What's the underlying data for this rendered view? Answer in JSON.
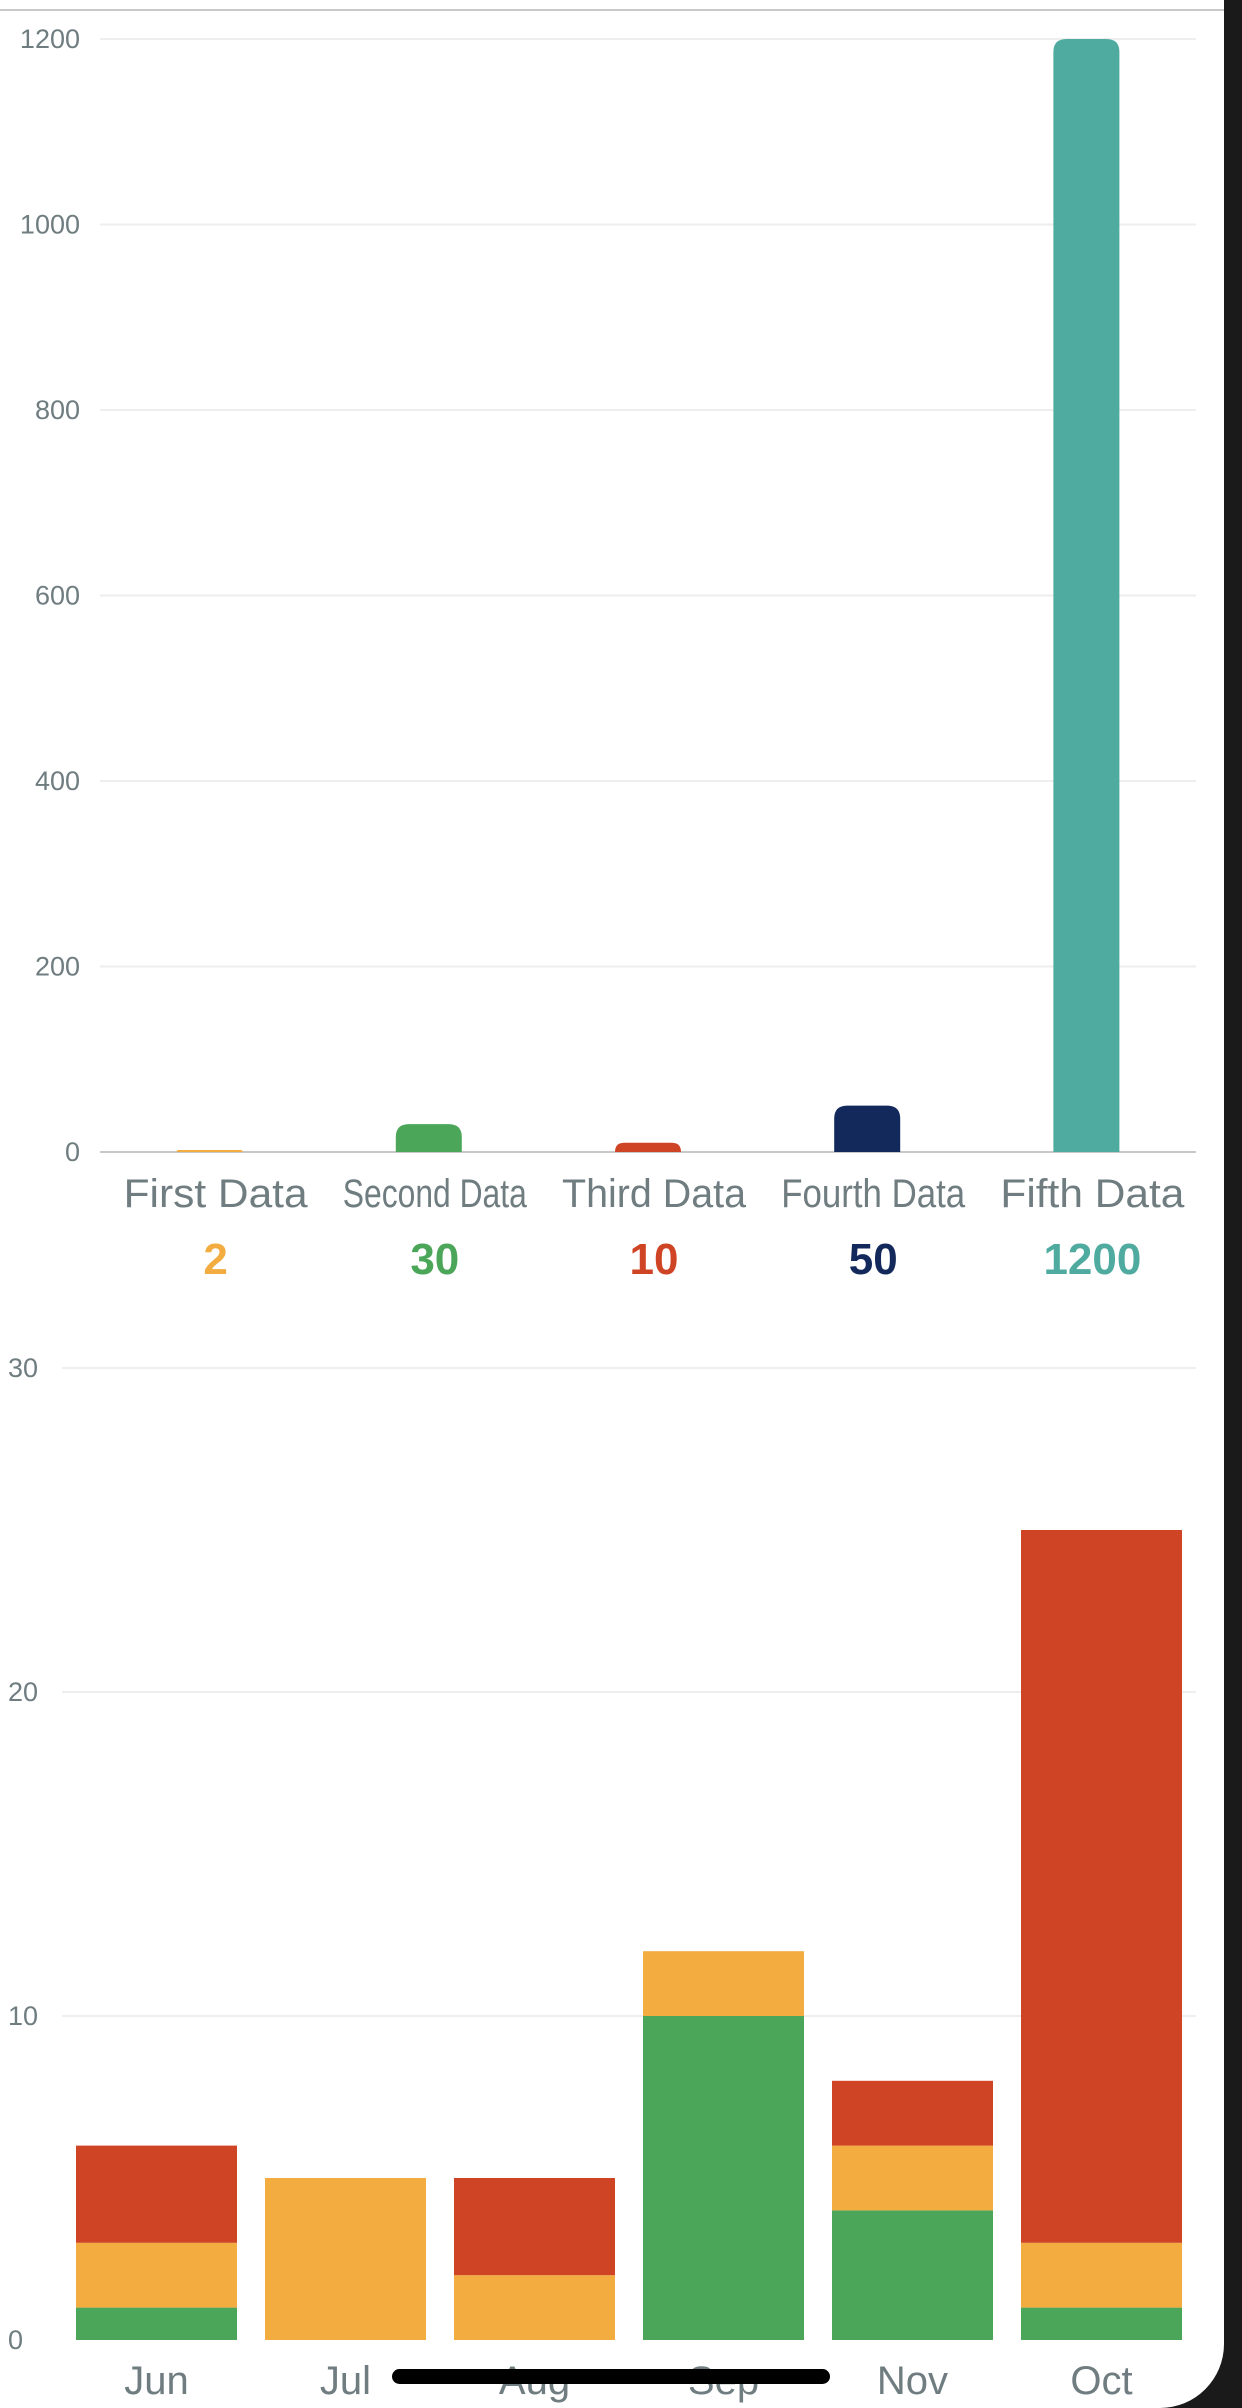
{
  "chart_data": [
    {
      "type": "bar",
      "categories": [
        "First Data",
        "Second Data",
        "Third Data",
        "Fourth Data",
        "Fifth Data"
      ],
      "values": [
        2,
        30,
        10,
        50,
        1200
      ],
      "value_labels": [
        "2",
        "30",
        "10",
        "50",
        "1200"
      ],
      "colors": [
        "#f2ac40",
        "#4ba65a",
        "#cf4424",
        "#13295b",
        "#4fab9f"
      ],
      "ylim": [
        0,
        1200
      ],
      "yticks": [
        0,
        200,
        400,
        600,
        800,
        1000,
        1200
      ],
      "ytick_labels": [
        "0",
        "200",
        "400",
        "600",
        "800",
        "1000",
        "1200"
      ],
      "grid": true,
      "title": "",
      "xlabel": "",
      "ylabel": ""
    },
    {
      "type": "bar",
      "stacked": true,
      "categories": [
        "Jun",
        "Jul",
        "Aug",
        "Sep",
        "Nov",
        "Oct"
      ],
      "series": [
        {
          "color": "#4ba65a",
          "values": [
            1,
            0,
            0,
            10,
            4,
            1
          ]
        },
        {
          "color": "#f2ac40",
          "values": [
            2,
            5,
            2,
            2,
            2,
            2
          ]
        },
        {
          "color": "#cf4424",
          "values": [
            3,
            0,
            3,
            0,
            2,
            22
          ]
        }
      ],
      "ylim": [
        0,
        30
      ],
      "yticks": [
        0,
        10,
        20,
        30
      ],
      "ytick_labels": [
        "0",
        "10",
        "20",
        "30"
      ],
      "grid": true,
      "title": "",
      "xlabel": "",
      "ylabel": ""
    }
  ],
  "colors": {
    "axis_text": "#6f7c80",
    "grid": "#eeeeee",
    "axis_line": "#c8c8c8"
  }
}
